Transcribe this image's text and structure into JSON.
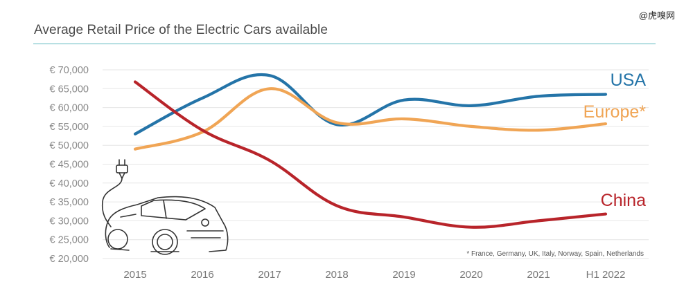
{
  "watermark": "@虎嗅网",
  "chart_data": {
    "type": "line",
    "title": "Average Retail Price of the Electric Cars available",
    "xlabel": "",
    "ylabel": "",
    "categories": [
      "2015",
      "2016",
      "2017",
      "2018",
      "2019",
      "2020",
      "2021",
      "H1 2022"
    ],
    "ylim": [
      20000,
      70000
    ],
    "ytick_values": [
      20000,
      25000,
      30000,
      35000,
      40000,
      45000,
      50000,
      55000,
      60000,
      65000,
      70000
    ],
    "ytick_labels": [
      "€ 20,000",
      "€ 25,000",
      "€ 30,000",
      "€ 35,000",
      "€ 40,000",
      "€ 45,000",
      "€ 50,000",
      "€ 55,000",
      "€ 60,000",
      "€ 65,000",
      "€ 70,000"
    ],
    "grid": true,
    "series": [
      {
        "name": "USA",
        "color": "#2474a8",
        "values": [
          53000,
          62500,
          68500,
          55500,
          62000,
          60500,
          63000,
          63500
        ]
      },
      {
        "name": "Europe*",
        "color": "#f0a555",
        "values": [
          49000,
          53500,
          65000,
          56000,
          57000,
          55000,
          54000,
          55700
        ]
      },
      {
        "name": "China",
        "color": "#b8242a",
        "values": [
          66800,
          54000,
          46000,
          34000,
          31000,
          28300,
          30000,
          31800
        ]
      }
    ],
    "footnote": "* France, Germany, UK, Italy, Norway, Spain, Netherlands"
  }
}
